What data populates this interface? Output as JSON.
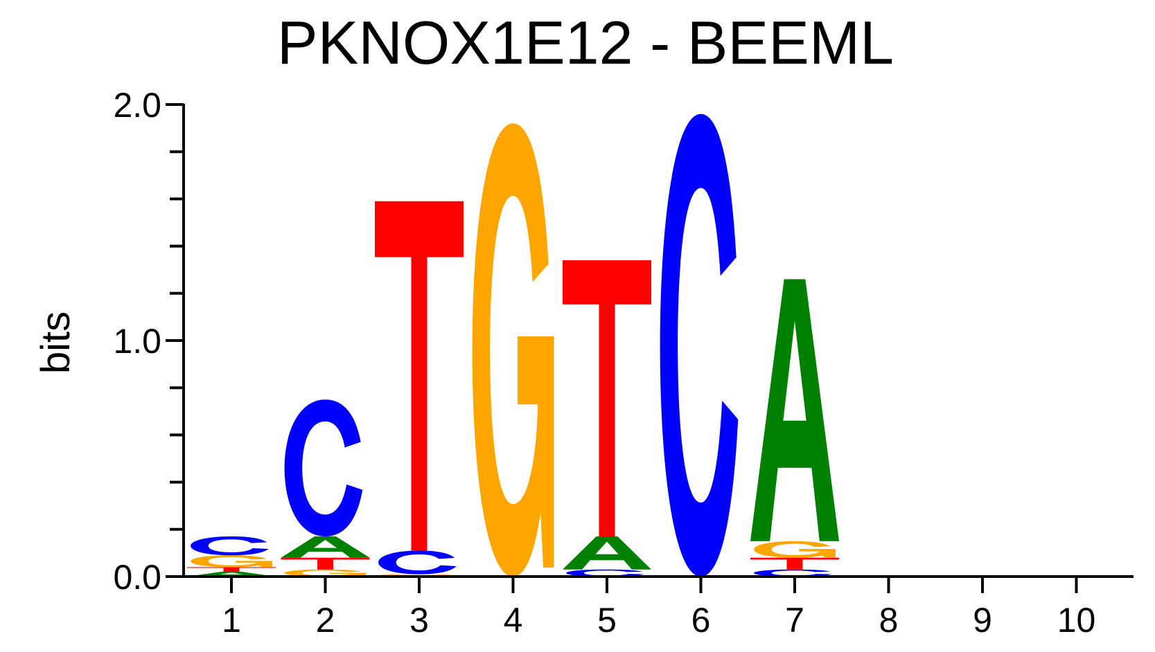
{
  "chart_data": {
    "type": "sequence-logo",
    "title": "PKNOX1E12 - BEEML",
    "ylabel": "bits",
    "xlabel": "",
    "ylim": [
      0,
      2
    ],
    "y_ticks": [
      {
        "value": 0,
        "label": "0.0"
      },
      {
        "value": 1,
        "label": "1.0"
      },
      {
        "value": 2,
        "label": "2.0"
      }
    ],
    "y_minor_step": 0.2,
    "positions": [
      "1",
      "2",
      "3",
      "4",
      "5",
      "6",
      "7",
      "8",
      "9",
      "10"
    ],
    "colors": {
      "A": "#008000",
      "C": "#0000ff",
      "G": "#ffa500",
      "T": "#ff0000"
    },
    "stacks": [
      [
        {
          "base": "A",
          "bits": 0.02
        },
        {
          "base": "T",
          "bits": 0.02
        },
        {
          "base": "G",
          "bits": 0.05
        },
        {
          "base": "C",
          "bits": 0.08
        }
      ],
      [
        {
          "base": "G",
          "bits": 0.03
        },
        {
          "base": "T",
          "bits": 0.05
        },
        {
          "base": "A",
          "bits": 0.09
        },
        {
          "base": "C",
          "bits": 0.58
        }
      ],
      [
        {
          "base": "G",
          "bits": 0.01
        },
        {
          "base": "C",
          "bits": 0.1
        },
        {
          "base": "T",
          "bits": 1.48
        }
      ],
      [
        {
          "base": "G",
          "bits": 1.92
        }
      ],
      [
        {
          "base": "C",
          "bits": 0.03
        },
        {
          "base": "A",
          "bits": 0.14
        },
        {
          "base": "T",
          "bits": 1.17
        }
      ],
      [
        {
          "base": "C",
          "bits": 1.96
        }
      ],
      [
        {
          "base": "C",
          "bits": 0.03
        },
        {
          "base": "T",
          "bits": 0.05
        },
        {
          "base": "G",
          "bits": 0.07
        },
        {
          "base": "A",
          "bits": 1.11
        }
      ],
      [],
      [],
      []
    ]
  }
}
